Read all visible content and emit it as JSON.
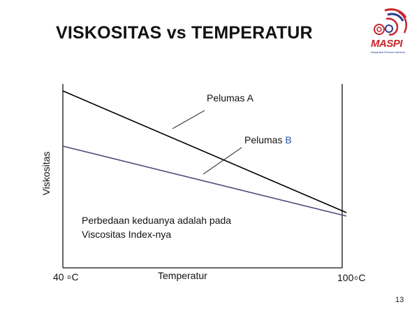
{
  "slide": {
    "title": "VISKOSITAS vs TEMPERATUR",
    "page_number": "13"
  },
  "logo": {
    "name": "MASPI",
    "tagline": "Masyarakat Pelumas Indonesia",
    "colors": {
      "red": "#c8242b",
      "blue": "#2a3a8c"
    }
  },
  "diagram": {
    "y_axis_label": "Viskositas",
    "x_axis_label": "Temperatur",
    "x_left_label": {
      "value": "40",
      "degree": "o",
      "unit": "C"
    },
    "x_right_label": {
      "value": "100",
      "degree": "o",
      "unit": "C"
    },
    "curves": [
      {
        "label": "Pelumas A",
        "label_prefix": "Pelumas ",
        "label_letter": "A",
        "color": "#000000",
        "letter_color": "#111111"
      },
      {
        "label": "Pelumas B",
        "label_prefix": "Pelumas ",
        "label_letter": "B",
        "color": "#4a4a7a",
        "letter_color": "#2b4fa8"
      }
    ],
    "note_line1": "Perbedaan keduanya adalah pada",
    "note_line2": "Viscositas Index-nya"
  }
}
